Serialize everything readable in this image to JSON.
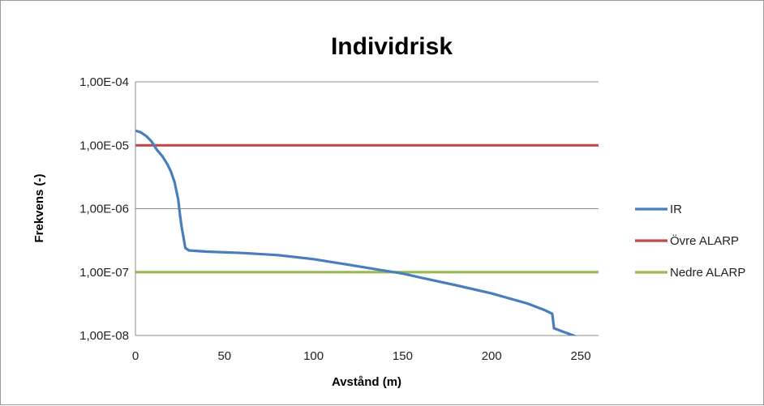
{
  "chart_data": {
    "type": "line",
    "title": "Individrisk",
    "xlabel": "Avstånd (m)",
    "ylabel": "Frekvens (-)",
    "xlim": [
      0,
      260
    ],
    "ylim": [
      1e-08,
      0.0001
    ],
    "y_scale": "log",
    "x_ticks": [
      0,
      50,
      100,
      150,
      200,
      250
    ],
    "x_tick_labels": [
      "0",
      "50",
      "100",
      "150",
      "200",
      "250"
    ],
    "y_ticks": [
      0.0001,
      1e-05,
      1e-06,
      1e-07,
      1e-08
    ],
    "y_tick_labels": [
      "1,00E-04",
      "1,00E-05",
      "1,00E-06",
      "1,00E-07",
      "1,00E-08"
    ],
    "grid": "horizontal",
    "legend": "right",
    "series": [
      {
        "name": "IR",
        "color": "#4a7ebb",
        "x": [
          0,
          3,
          6,
          9,
          12,
          15,
          18,
          20,
          22,
          24,
          25,
          26,
          27,
          28,
          30,
          40,
          60,
          80,
          100,
          120,
          140,
          150,
          160,
          180,
          200,
          220,
          230,
          234,
          235,
          240,
          245,
          248
        ],
        "y": [
          1.7e-05,
          1.6e-05,
          1.4e-05,
          1.15e-05,
          8.5e-06,
          6.8e-06,
          5e-06,
          3.8e-06,
          2.6e-06,
          1.4e-06,
          8e-07,
          5e-07,
          3.5e-07,
          2.4e-07,
          2.2e-07,
          2.1e-07,
          2e-07,
          1.85e-07,
          1.6e-07,
          1.3e-07,
          1.05e-07,
          9.5e-08,
          8.2e-08,
          6.2e-08,
          4.6e-08,
          3.2e-08,
          2.5e-08,
          2.2e-08,
          1.3e-08,
          1.15e-08,
          1.02e-08,
          9.5e-09
        ]
      },
      {
        "name": "Övre ALARP",
        "color": "#be4b48",
        "x": [
          0,
          260
        ],
        "y": [
          1e-05,
          1e-05
        ]
      },
      {
        "name": "Nedre ALARP",
        "color": "#98b954",
        "x": [
          0,
          260
        ],
        "y": [
          1e-07,
          1e-07
        ]
      }
    ]
  }
}
